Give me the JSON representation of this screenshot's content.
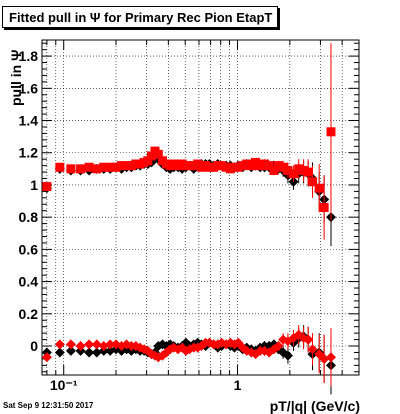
{
  "title": "Fitted pull in Ψ  for Primary Rec Pion EtapT",
  "timestamp": "Sat Sep  9 12:31:50 2017",
  "chart_data": {
    "type": "scatter",
    "xlabel": "pT/|q| (GeV/c)",
    "ylabel": "pull in Ψ",
    "xscale": "log",
    "xlim": [
      0.075,
      5.0
    ],
    "ylim": [
      -0.18,
      1.9
    ],
    "xticks": [
      {
        "value": 0.1,
        "label": "10⁻¹"
      },
      {
        "value": 1,
        "label": "1"
      }
    ],
    "yticks": [
      0,
      0.2,
      0.4,
      0.6,
      0.8,
      1,
      1.2,
      1.4,
      1.6,
      1.8
    ],
    "grid": true,
    "series": [
      {
        "color": "#000000",
        "marker": "diamond",
        "x": [
          0.08,
          0.095,
          0.11,
          0.125,
          0.14,
          0.155,
          0.17,
          0.185,
          0.2,
          0.215,
          0.23,
          0.245,
          0.26,
          0.275,
          0.29,
          0.305,
          0.32,
          0.335,
          0.35,
          0.37,
          0.39,
          0.41,
          0.43,
          0.455,
          0.48,
          0.505,
          0.53,
          0.56,
          0.59,
          0.62,
          0.655,
          0.69,
          0.73,
          0.77,
          0.81,
          0.86,
          0.91,
          0.96,
          1.01,
          1.07,
          1.13,
          1.2,
          1.27,
          1.35,
          1.43,
          1.52,
          1.62,
          1.72,
          1.83,
          1.95,
          2.1,
          2.25,
          2.4,
          2.55,
          2.7,
          2.95,
          3.15,
          3.45
        ],
        "y": [
          0.98,
          1.1,
          1.09,
          1.09,
          1.09,
          1.1,
          1.1,
          1.1,
          1.11,
          1.1,
          1.11,
          1.11,
          1.12,
          1.12,
          1.13,
          1.13,
          1.14,
          1.17,
          1.16,
          1.13,
          1.11,
          1.1,
          1.11,
          1.11,
          1.1,
          1.11,
          1.12,
          1.1,
          1.12,
          1.13,
          1.13,
          1.13,
          1.12,
          1.13,
          1.12,
          1.12,
          1.12,
          1.11,
          1.12,
          1.11,
          1.13,
          1.11,
          1.12,
          1.11,
          1.11,
          1.11,
          1.12,
          1.1,
          1.09,
          1.06,
          1.02,
          1.07,
          1.08,
          1.07,
          1.04,
          0.96,
          0.91,
          0.8
        ],
        "y_err": [
          0.02,
          0.01,
          0.01,
          0.01,
          0.01,
          0.01,
          0.01,
          0.01,
          0.01,
          0.01,
          0.01,
          0.01,
          0.01,
          0.01,
          0.01,
          0.01,
          0.01,
          0.01,
          0.01,
          0.01,
          0.01,
          0.01,
          0.01,
          0.01,
          0.01,
          0.01,
          0.01,
          0.01,
          0.01,
          0.01,
          0.01,
          0.01,
          0.01,
          0.01,
          0.01,
          0.01,
          0.02,
          0.02,
          0.02,
          0.02,
          0.02,
          0.02,
          0.02,
          0.02,
          0.03,
          0.03,
          0.03,
          0.03,
          0.04,
          0.05,
          0.05,
          0.06,
          0.07,
          0.08,
          0.1,
          0.12,
          0.15,
          0.18
        ]
      },
      {
        "color": "#ff0000",
        "marker": "square",
        "x": [
          0.08,
          0.095,
          0.11,
          0.125,
          0.14,
          0.155,
          0.17,
          0.185,
          0.2,
          0.215,
          0.23,
          0.245,
          0.26,
          0.275,
          0.29,
          0.305,
          0.32,
          0.335,
          0.35,
          0.37,
          0.39,
          0.41,
          0.43,
          0.455,
          0.48,
          0.505,
          0.53,
          0.56,
          0.59,
          0.62,
          0.655,
          0.69,
          0.73,
          0.77,
          0.81,
          0.86,
          0.91,
          0.96,
          1.01,
          1.07,
          1.13,
          1.2,
          1.27,
          1.35,
          1.43,
          1.52,
          1.62,
          1.72,
          1.83,
          1.95,
          2.1,
          2.25,
          2.4,
          2.55,
          2.7,
          2.95,
          3.15,
          3.45
        ],
        "y": [
          0.99,
          1.11,
          1.1,
          1.1,
          1.11,
          1.1,
          1.11,
          1.11,
          1.11,
          1.12,
          1.12,
          1.12,
          1.13,
          1.13,
          1.14,
          1.15,
          1.18,
          1.21,
          1.19,
          1.15,
          1.13,
          1.12,
          1.13,
          1.12,
          1.13,
          1.12,
          1.12,
          1.12,
          1.13,
          1.11,
          1.12,
          1.11,
          1.11,
          1.12,
          1.12,
          1.11,
          1.1,
          1.11,
          1.11,
          1.12,
          1.13,
          1.12,
          1.14,
          1.12,
          1.13,
          1.12,
          1.09,
          1.12,
          1.11,
          1.09,
          1.07,
          1.1,
          1.09,
          1.08,
          1.02,
          0.98,
          0.86,
          1.33
        ],
        "y_err": [
          0.02,
          0.01,
          0.01,
          0.01,
          0.01,
          0.01,
          0.01,
          0.01,
          0.01,
          0.01,
          0.01,
          0.01,
          0.01,
          0.01,
          0.01,
          0.01,
          0.01,
          0.01,
          0.01,
          0.01,
          0.01,
          0.01,
          0.01,
          0.01,
          0.01,
          0.01,
          0.01,
          0.01,
          0.01,
          0.01,
          0.01,
          0.01,
          0.01,
          0.01,
          0.01,
          0.01,
          0.02,
          0.02,
          0.02,
          0.02,
          0.02,
          0.02,
          0.02,
          0.02,
          0.03,
          0.03,
          0.03,
          0.03,
          0.04,
          0.05,
          0.05,
          0.06,
          0.07,
          0.08,
          0.1,
          0.15,
          0.2,
          0.55
        ]
      },
      {
        "color": "#000000",
        "marker": "diamond",
        "x": [
          0.08,
          0.095,
          0.11,
          0.125,
          0.14,
          0.155,
          0.17,
          0.185,
          0.2,
          0.215,
          0.23,
          0.245,
          0.26,
          0.275,
          0.29,
          0.305,
          0.32,
          0.335,
          0.35,
          0.37,
          0.39,
          0.41,
          0.43,
          0.455,
          0.48,
          0.505,
          0.53,
          0.56,
          0.59,
          0.62,
          0.655,
          0.69,
          0.73,
          0.77,
          0.81,
          0.86,
          0.91,
          0.96,
          1.01,
          1.07,
          1.13,
          1.2,
          1.27,
          1.35,
          1.43,
          1.52,
          1.62,
          1.72,
          1.83,
          1.95,
          2.1,
          2.25,
          2.4,
          2.55,
          2.7,
          2.95,
          3.15,
          3.45
        ],
        "y": [
          -0.04,
          -0.04,
          -0.03,
          -0.03,
          -0.04,
          -0.04,
          -0.03,
          -0.03,
          -0.02,
          -0.03,
          -0.02,
          -0.03,
          -0.02,
          -0.03,
          -0.03,
          -0.04,
          -0.05,
          -0.04,
          0.0,
          0.01,
          0.0,
          0.01,
          0.0,
          -0.01,
          0.0,
          0.02,
          0.0,
          0.01,
          0.02,
          0.01,
          0.0,
          0.02,
          0.01,
          -0.01,
          0.0,
          0.01,
          0.0,
          -0.01,
          0.0,
          -0.02,
          -0.01,
          -0.02,
          -0.03,
          -0.01,
          0.0,
          0.0,
          0.01,
          -0.02,
          -0.04,
          -0.06,
          0.02,
          0.05,
          0.06,
          0.04,
          -0.05,
          -0.04,
          -0.08,
          -0.12
        ],
        "y_err": [
          0.02,
          0.01,
          0.01,
          0.01,
          0.01,
          0.01,
          0.01,
          0.01,
          0.01,
          0.01,
          0.01,
          0.01,
          0.01,
          0.01,
          0.01,
          0.01,
          0.01,
          0.01,
          0.01,
          0.01,
          0.01,
          0.01,
          0.01,
          0.01,
          0.01,
          0.01,
          0.01,
          0.01,
          0.01,
          0.01,
          0.01,
          0.01,
          0.01,
          0.01,
          0.01,
          0.01,
          0.02,
          0.02,
          0.02,
          0.02,
          0.02,
          0.02,
          0.02,
          0.02,
          0.03,
          0.03,
          0.03,
          0.03,
          0.04,
          0.05,
          0.05,
          0.06,
          0.07,
          0.08,
          0.1,
          0.12,
          0.15,
          0.18
        ]
      },
      {
        "color": "#ff0000",
        "marker": "diamond",
        "x": [
          0.08,
          0.095,
          0.11,
          0.125,
          0.14,
          0.155,
          0.17,
          0.185,
          0.2,
          0.215,
          0.23,
          0.245,
          0.26,
          0.275,
          0.29,
          0.305,
          0.32,
          0.335,
          0.35,
          0.37,
          0.39,
          0.41,
          0.43,
          0.455,
          0.48,
          0.505,
          0.53,
          0.56,
          0.59,
          0.62,
          0.655,
          0.69,
          0.73,
          0.77,
          0.81,
          0.86,
          0.91,
          0.96,
          1.01,
          1.07,
          1.13,
          1.2,
          1.27,
          1.35,
          1.43,
          1.52,
          1.62,
          1.72,
          1.83,
          1.95,
          2.1,
          2.25,
          2.4,
          2.55,
          2.7,
          2.95,
          3.15,
          3.45
        ],
        "y": [
          -0.07,
          0.01,
          0.01,
          0.0,
          0.01,
          0.01,
          0.0,
          0.01,
          0.01,
          0.0,
          0.01,
          0.0,
          0.0,
          -0.01,
          -0.02,
          -0.03,
          -0.05,
          -0.06,
          -0.07,
          -0.06,
          -0.04,
          -0.02,
          -0.01,
          -0.02,
          -0.01,
          -0.03,
          -0.02,
          -0.01,
          -0.01,
          0.0,
          0.02,
          0.02,
          0.01,
          0.01,
          0.02,
          0.01,
          0.02,
          0.01,
          0.02,
          -0.01,
          -0.03,
          -0.04,
          -0.05,
          -0.03,
          -0.03,
          -0.04,
          -0.02,
          0.0,
          0.04,
          0.03,
          0.05,
          0.07,
          0.05,
          0.04,
          -0.02,
          -0.05,
          -0.08,
          -0.07
        ],
        "y_err": [
          0.02,
          0.01,
          0.01,
          0.01,
          0.01,
          0.01,
          0.01,
          0.01,
          0.01,
          0.01,
          0.01,
          0.01,
          0.01,
          0.01,
          0.01,
          0.01,
          0.01,
          0.01,
          0.01,
          0.01,
          0.01,
          0.01,
          0.01,
          0.01,
          0.01,
          0.01,
          0.01,
          0.01,
          0.01,
          0.01,
          0.01,
          0.01,
          0.01,
          0.01,
          0.01,
          0.01,
          0.02,
          0.02,
          0.02,
          0.02,
          0.02,
          0.02,
          0.02,
          0.02,
          0.03,
          0.03,
          0.03,
          0.03,
          0.04,
          0.05,
          0.05,
          0.06,
          0.07,
          0.08,
          0.1,
          0.12,
          0.15,
          0.18
        ]
      }
    ]
  }
}
